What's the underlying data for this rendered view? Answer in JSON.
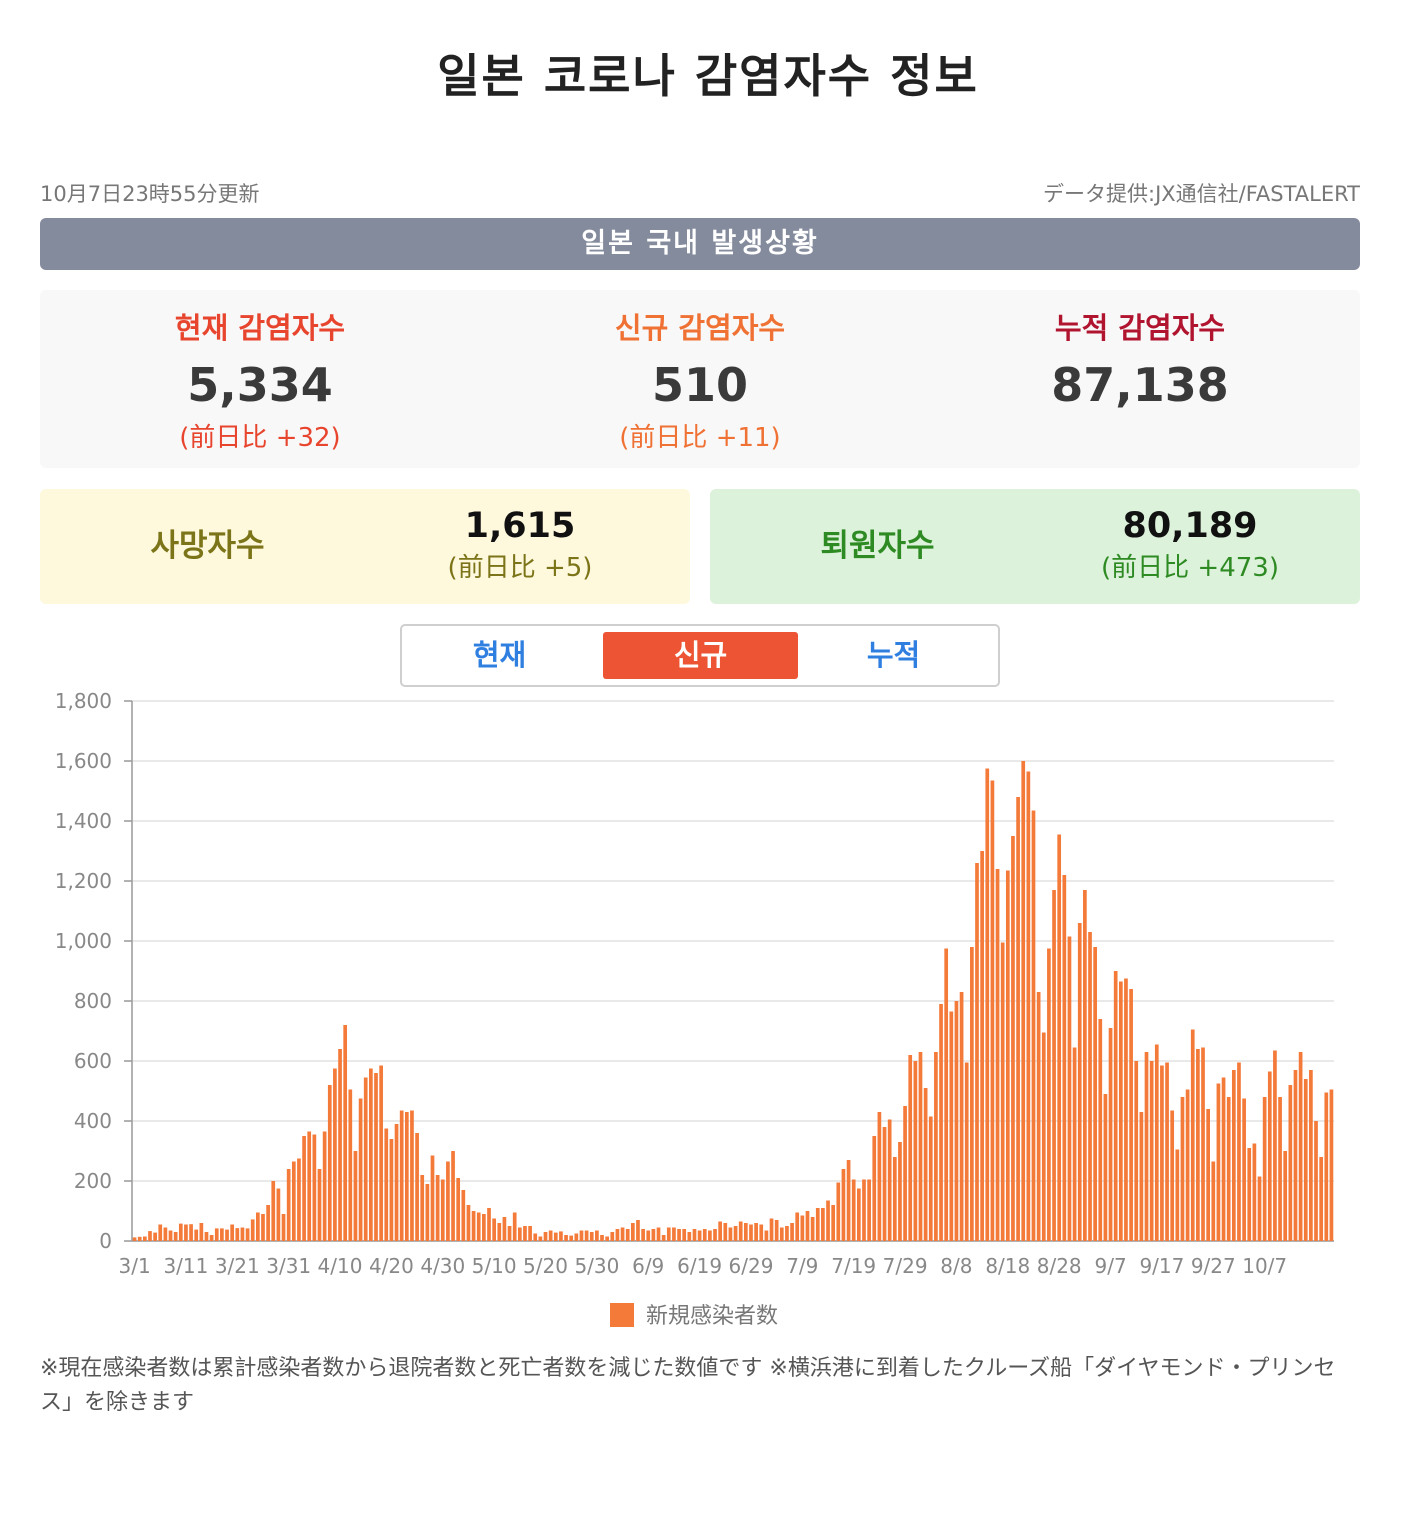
{
  "header": {
    "title": "일본 코로나 감염자수 정보"
  },
  "meta": {
    "updated": "10月7日23時55分更新",
    "source": "データ提供:JX通信社/FASTALERT"
  },
  "section": {
    "title": "일본 국내 발생상황"
  },
  "stats": {
    "current": {
      "label": "현재 감염자수",
      "value": "5,334",
      "delta": "(前日比 +32)"
    },
    "new": {
      "label": "신규 감염자수",
      "value": "510",
      "delta": "(前日比 +11)"
    },
    "total": {
      "label": "누적 감염자수",
      "value": "87,138"
    }
  },
  "deaths": {
    "label": "사망자수",
    "value": "1,615",
    "delta": "(前日比 +5)"
  },
  "recovered": {
    "label": "퇴원자수",
    "value": "80,189",
    "delta": "(前日比 +473)"
  },
  "tabs": {
    "current": "현재",
    "new": "신규",
    "total": "누적"
  },
  "colors": {
    "red": "#e8452f",
    "orange": "#f07134",
    "darkred": "#b0142f",
    "olive": "#7c7418",
    "green": "#2e8b23",
    "bar": "#f47a3a",
    "tab_active": "#ed5433",
    "tab_text": "#2f7fe0"
  },
  "chart_data": {
    "type": "bar",
    "title": "",
    "xlabel": "",
    "ylabel": "",
    "ylim": [
      0,
      1800
    ],
    "yticks": [
      "0",
      "200",
      "400",
      "600",
      "800",
      "1,000",
      "1,200",
      "1,400",
      "1,600",
      "1,800"
    ],
    "xticks": [
      "3/1",
      "3/11",
      "3/21",
      "3/31",
      "4/10",
      "4/20",
      "4/30",
      "5/10",
      "5/20",
      "5/30",
      "6/9",
      "6/19",
      "6/29",
      "7/9",
      "7/19",
      "7/29",
      "8/8",
      "8/18",
      "8/28",
      "9/7",
      "9/17",
      "9/27",
      "10/7"
    ],
    "legend": [
      "新規感染者数"
    ],
    "grid": true,
    "series": [
      {
        "name": "新規感染者数",
        "values": [
          12,
          14,
          15,
          33,
          28,
          55,
          45,
          35,
          30,
          58,
          55,
          56,
          38,
          60,
          30,
          20,
          42,
          42,
          38,
          55,
          43,
          45,
          42,
          72,
          95,
          90,
          120,
          200,
          175,
          90,
          240,
          265,
          275,
          350,
          365,
          355,
          240,
          365,
          520,
          575,
          640,
          720,
          505,
          300,
          475,
          545,
          575,
          560,
          585,
          375,
          340,
          390,
          435,
          430,
          435,
          360,
          220,
          190,
          285,
          220,
          205,
          265,
          300,
          210,
          170,
          120,
          100,
          95,
          90,
          110,
          75,
          60,
          80,
          50,
          95,
          45,
          50,
          50,
          25,
          15,
          30,
          35,
          28,
          32,
          20,
          18,
          25,
          35,
          35,
          30,
          35,
          20,
          15,
          30,
          40,
          45,
          40,
          60,
          70,
          40,
          35,
          40,
          45,
          20,
          45,
          45,
          40,
          40,
          30,
          40,
          35,
          40,
          35,
          40,
          65,
          60,
          45,
          50,
          65,
          60,
          55,
          60,
          55,
          35,
          75,
          70,
          45,
          50,
          60,
          95,
          85,
          100,
          80,
          110,
          110,
          135,
          120,
          195,
          240,
          270,
          205,
          175,
          205,
          205,
          350,
          430,
          380,
          405,
          280,
          330,
          450,
          620,
          600,
          630,
          510,
          415,
          630,
          790,
          975,
          765,
          800,
          830,
          595,
          980,
          1260,
          1300,
          1575,
          1535,
          1240,
          995,
          1235,
          1350,
          1480,
          1600,
          1565,
          1435,
          830,
          695,
          975,
          1170,
          1355,
          1220,
          1015,
          645,
          1060,
          1170,
          1030,
          980,
          740,
          490,
          710,
          900,
          865,
          875,
          840,
          600,
          430,
          630,
          600,
          655,
          585,
          595,
          435,
          305,
          480,
          505,
          705,
          640,
          645,
          440,
          265,
          525,
          545,
          480,
          570,
          595,
          475,
          310,
          325,
          215,
          480,
          565,
          635,
          480,
          300,
          520,
          570,
          630,
          540,
          570,
          400,
          280,
          495,
          505
        ]
      }
    ]
  },
  "footnote": "※現在感染者数は累計感染者数から退院者数と死亡者数を減じた数値です ※横浜港に到着したクルーズ船「ダイヤモンド・プリンセス」を除きます"
}
